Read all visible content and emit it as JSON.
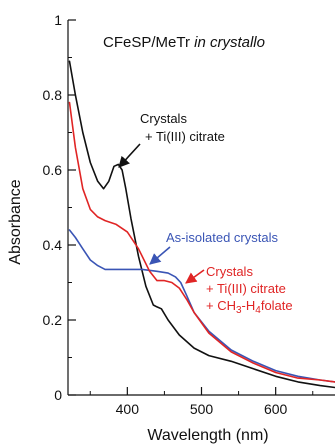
{
  "chart_data": {
    "type": "line",
    "title_main": "CFeSP/MeTr ",
    "title_italic": "in crystallo",
    "xlabel": "Wavelength (nm)",
    "ylabel": "Absorbance",
    "xlim": [
      320,
      680
    ],
    "ylim": [
      0,
      1
    ],
    "xticks": [
      {
        "value": 400,
        "label": "400"
      },
      {
        "value": 500,
        "label": "500"
      },
      {
        "value": 600,
        "label": "600"
      }
    ],
    "yticks": [
      {
        "value": 0,
        "label": "0"
      },
      {
        "value": 0.2,
        "label": "0.2"
      },
      {
        "value": 0.4,
        "label": "0.4"
      },
      {
        "value": 0.6,
        "label": "0.6"
      },
      {
        "value": 0.8,
        "label": "0.8"
      },
      {
        "value": 1,
        "label": "1"
      }
    ],
    "grid": false,
    "series": [
      {
        "name": "Crystals + Ti(III) citrate",
        "color": "#111111",
        "x": [
          322,
          330,
          340,
          350,
          360,
          368,
          375,
          382,
          388,
          393,
          398,
          405,
          415,
          425,
          435,
          440,
          446,
          455,
          470,
          490,
          510,
          540,
          570,
          600,
          630,
          660,
          680
        ],
        "y": [
          0.89,
          0.8,
          0.7,
          0.62,
          0.57,
          0.55,
          0.57,
          0.61,
          0.615,
          0.6,
          0.55,
          0.47,
          0.37,
          0.29,
          0.24,
          0.235,
          0.23,
          0.2,
          0.16,
          0.125,
          0.105,
          0.09,
          0.07,
          0.05,
          0.035,
          0.025,
          0.02
        ]
      },
      {
        "name": "As-isolated crystals",
        "color": "#3a55b5",
        "x": [
          322,
          330,
          340,
          350,
          360,
          370,
          385,
          400,
          420,
          440,
          455,
          465,
          472,
          480,
          490,
          510,
          540,
          570,
          600,
          630,
          660,
          680
        ],
        "y": [
          0.44,
          0.42,
          0.39,
          0.36,
          0.345,
          0.335,
          0.335,
          0.335,
          0.335,
          0.33,
          0.325,
          0.315,
          0.3,
          0.265,
          0.22,
          0.17,
          0.12,
          0.09,
          0.065,
          0.05,
          0.04,
          0.035
        ]
      },
      {
        "name": "Crystals + Ti(III) citrate + CH3-H4folate",
        "color": "#e02525",
        "x": [
          322,
          330,
          340,
          350,
          360,
          370,
          385,
          400,
          415,
          430,
          440,
          450,
          460,
          470,
          480,
          490,
          510,
          540,
          570,
          600,
          630,
          660,
          680
        ],
        "y": [
          0.78,
          0.66,
          0.55,
          0.495,
          0.475,
          0.465,
          0.455,
          0.435,
          0.39,
          0.33,
          0.305,
          0.305,
          0.3,
          0.285,
          0.255,
          0.22,
          0.165,
          0.115,
          0.085,
          0.06,
          0.045,
          0.04,
          0.035
        ]
      }
    ],
    "annotations": [
      {
        "lines": [
          "Crystals",
          "+ Ti(III) citrate"
        ],
        "color": "#111111"
      },
      {
        "lines": [
          "As-isolated crystals"
        ],
        "color": "#3a55b5"
      },
      {
        "lines": [
          "Crystals",
          "+ Ti(III) citrate"
        ],
        "last_line": {
          "prefix": "+ CH",
          "sub1": "3",
          "mid": "-H",
          "sub2": "4",
          "suffix": "folate"
        },
        "color": "#e02525"
      }
    ]
  }
}
